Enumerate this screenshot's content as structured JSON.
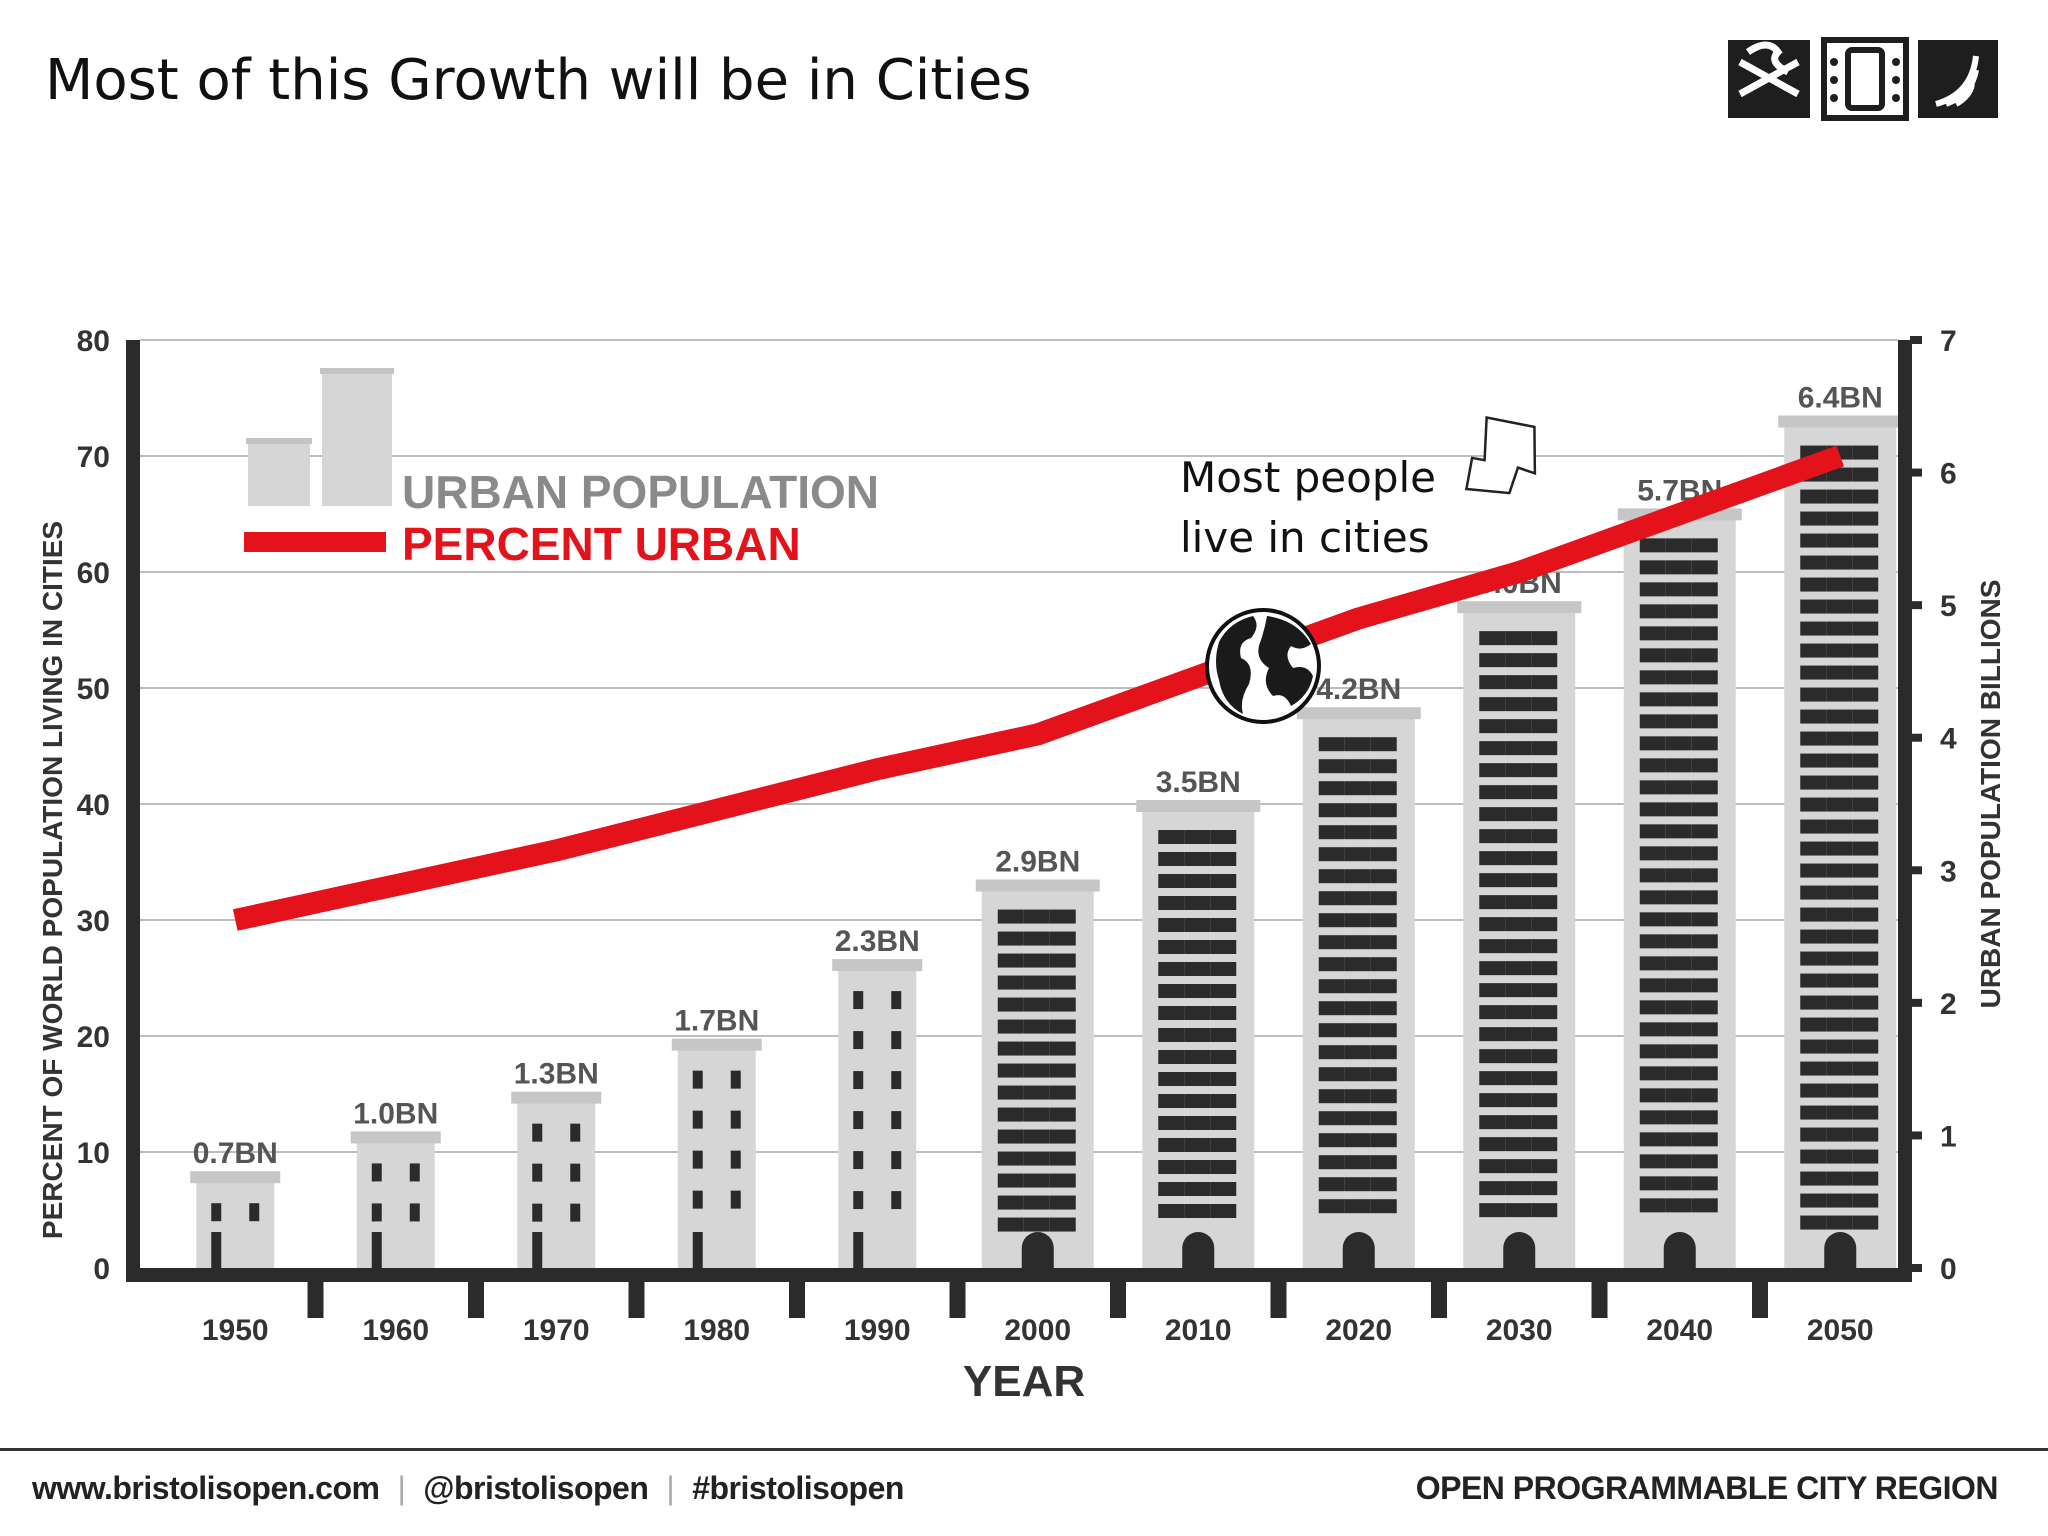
{
  "page": {
    "title": "Most of this Growth will be in Cities",
    "callout": [
      "Most people",
      "live in cities"
    ],
    "footer": {
      "links": [
        "www.bristolisopen.com",
        "@bristolisopen",
        "#bristolisopen"
      ],
      "tagline": "OPEN PROGRAMMABLE CITY REGION"
    }
  },
  "colors": {
    "line": "#e3121b",
    "building": "#d6d6d6",
    "window": "#2b2b2b",
    "axis": "#2b2b2b",
    "grid": "#bdbdbd",
    "legend_gray": "#8a8a8a"
  },
  "chart_data": {
    "type": "bar",
    "categories": [
      "1950",
      "1960",
      "1970",
      "1980",
      "1990",
      "2000",
      "2010",
      "2020",
      "2030",
      "2040",
      "2050"
    ],
    "xlabel": "YEAR",
    "ylabel_left": "PERCENT OF WORLD POPULATION LIVING IN CITIES",
    "ylabel_right": "URBAN POPULATION BILLIONS",
    "ylim_left": [
      0,
      80
    ],
    "ylim_right": [
      0,
      7
    ],
    "yticks_left": [
      "0",
      "10",
      "20",
      "30",
      "40",
      "50",
      "60",
      "70",
      "80"
    ],
    "yticks_right": [
      "0",
      "1",
      "2",
      "3",
      "4",
      "5",
      "6",
      "7"
    ],
    "grid": true,
    "legend": {
      "placement": "top-left",
      "entries": [
        "URBAN POPULATION",
        "PERCENT URBAN"
      ]
    },
    "series": [
      {
        "name": "URBAN POPULATION",
        "type": "bar",
        "axis": "right",
        "values": [
          0.7,
          1.0,
          1.3,
          1.7,
          2.3,
          2.9,
          3.5,
          4.2,
          5.0,
          5.7,
          6.4
        ],
        "labels": [
          "0.7BN",
          "1.0BN",
          "1.3BN",
          "1.7BN",
          "2.3BN",
          "2.9BN",
          "3.5BN",
          "4.2BN",
          "5.0BN",
          "5.7BN",
          "6.4BN"
        ]
      },
      {
        "name": "PERCENT URBAN",
        "type": "line",
        "axis": "left",
        "values": [
          30,
          33,
          36,
          39.5,
          43,
          46,
          51,
          56,
          60,
          65,
          70
        ]
      }
    ]
  }
}
